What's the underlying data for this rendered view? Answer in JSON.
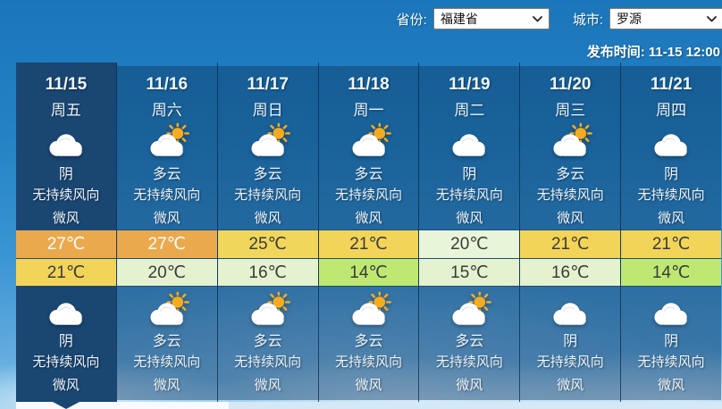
{
  "topbar": {
    "province_label": "省份:",
    "province_value": "福建省",
    "city_label": "城市:",
    "city_value": "罗源",
    "publish_label": "发布时间:",
    "publish_value": "11-15 12:00"
  },
  "forecast": {
    "days": [
      {
        "date": "11/15",
        "weekday": "周五",
        "selected": true,
        "day": {
          "icon": "overcast",
          "condition": "阴",
          "wind_dir": "无持续风向",
          "wind_power": "微风"
        },
        "high": {
          "temp": "27℃",
          "bg": "#eba94e",
          "fg": "#ffffff"
        },
        "low": {
          "temp": "21℃",
          "bg": "#f2d458",
          "fg": "#3a3a3a"
        },
        "night": {
          "icon": "overcast",
          "condition": "阴",
          "wind_dir": "无持续风向",
          "wind_power": "微风"
        }
      },
      {
        "date": "11/16",
        "weekday": "周六",
        "selected": false,
        "day": {
          "icon": "partly-cloudy",
          "condition": "多云",
          "wind_dir": "无持续风向",
          "wind_power": "微风"
        },
        "high": {
          "temp": "27℃",
          "bg": "#eba94e",
          "fg": "#ffffff"
        },
        "low": {
          "temp": "20℃",
          "bg": "#e4f2cf",
          "fg": "#3a3a3a"
        },
        "night": {
          "icon": "partly-cloudy",
          "condition": "多云",
          "wind_dir": "无持续风向",
          "wind_power": "微风"
        }
      },
      {
        "date": "11/17",
        "weekday": "周日",
        "selected": false,
        "day": {
          "icon": "partly-cloudy",
          "condition": "多云",
          "wind_dir": "无持续风向",
          "wind_power": "微风"
        },
        "high": {
          "temp": "25℃",
          "bg": "#f0d75c",
          "fg": "#3a3a3a"
        },
        "low": {
          "temp": "16℃",
          "bg": "#e4f2cf",
          "fg": "#3a3a3a"
        },
        "night": {
          "icon": "partly-cloudy",
          "condition": "多云",
          "wind_dir": "无持续风向",
          "wind_power": "微风"
        }
      },
      {
        "date": "11/18",
        "weekday": "周一",
        "selected": false,
        "day": {
          "icon": "partly-cloudy",
          "condition": "多云",
          "wind_dir": "无持续风向",
          "wind_power": "微风"
        },
        "high": {
          "temp": "21℃",
          "bg": "#f2d458",
          "fg": "#3a3a3a"
        },
        "low": {
          "temp": "14℃",
          "bg": "#bfe873",
          "fg": "#3a3a3a"
        },
        "night": {
          "icon": "partly-cloudy",
          "condition": "多云",
          "wind_dir": "无持续风向",
          "wind_power": "微风"
        }
      },
      {
        "date": "11/19",
        "weekday": "周二",
        "selected": false,
        "day": {
          "icon": "overcast",
          "condition": "阴",
          "wind_dir": "无持续风向",
          "wind_power": "微风"
        },
        "high": {
          "temp": "20℃",
          "bg": "#e9f5d8",
          "fg": "#3a3a3a"
        },
        "low": {
          "temp": "15℃",
          "bg": "#e4f2cf",
          "fg": "#3a3a3a"
        },
        "night": {
          "icon": "partly-cloudy",
          "condition": "多云",
          "wind_dir": "无持续风向",
          "wind_power": "微风"
        }
      },
      {
        "date": "11/20",
        "weekday": "周三",
        "selected": false,
        "day": {
          "icon": "partly-cloudy",
          "condition": "多云",
          "wind_dir": "无持续风向",
          "wind_power": "微风"
        },
        "high": {
          "temp": "21℃",
          "bg": "#f2d458",
          "fg": "#3a3a3a"
        },
        "low": {
          "temp": "16℃",
          "bg": "#e4f2cf",
          "fg": "#3a3a3a"
        },
        "night": {
          "icon": "overcast",
          "condition": "阴",
          "wind_dir": "无持续风向",
          "wind_power": "微风"
        }
      },
      {
        "date": "11/21",
        "weekday": "周四",
        "selected": false,
        "day": {
          "icon": "overcast",
          "condition": "阴",
          "wind_dir": "无持续风向",
          "wind_power": "微风"
        },
        "high": {
          "temp": "21℃",
          "bg": "#f2d458",
          "fg": "#3a3a3a"
        },
        "low": {
          "temp": "14℃",
          "bg": "#bfe873",
          "fg": "#3a3a3a"
        },
        "night": {
          "icon": "overcast",
          "condition": "阴",
          "wind_dir": "无持续风向",
          "wind_power": "微风"
        }
      }
    ]
  }
}
